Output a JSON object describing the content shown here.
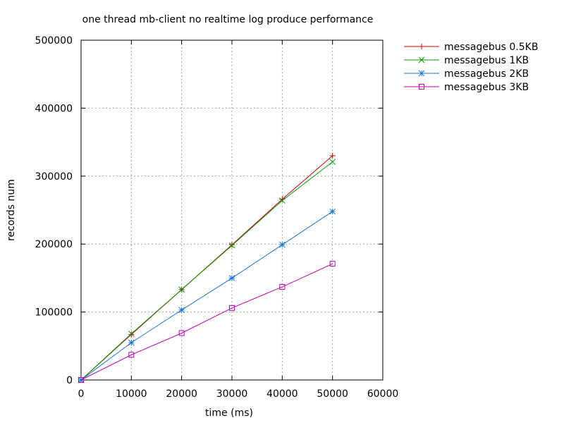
{
  "chart_data": {
    "type": "line",
    "title": "one thread mb-client no realtime log produce performance",
    "xlabel": "time (ms)",
    "ylabel": "records num",
    "xlim": [
      0,
      60000
    ],
    "ylim": [
      0,
      500000
    ],
    "xticks": [
      0,
      10000,
      20000,
      30000,
      40000,
      50000,
      60000
    ],
    "xtick_labels": [
      "0",
      "10000",
      "20000",
      "30000",
      "40000",
      "50000",
      "60000"
    ],
    "yticks": [
      0,
      100000,
      200000,
      300000,
      400000,
      500000
    ],
    "ytick_labels": [
      "0",
      "100000",
      "200000",
      "300000",
      "400000",
      "500000"
    ],
    "grid": true,
    "legend_position": "outside-right",
    "x": [
      0,
      10000,
      20000,
      30000,
      40000,
      50000
    ],
    "series": [
      {
        "name": "messagebus 0.5KB",
        "color": "#cc0000",
        "marker": "plus",
        "values": [
          0,
          67000,
          133000,
          199000,
          266000,
          330000
        ]
      },
      {
        "name": "messagebus 1KB",
        "color": "#009900",
        "marker": "cross",
        "values": [
          0,
          68000,
          133000,
          198000,
          264000,
          321000
        ]
      },
      {
        "name": "messagebus 2KB",
        "color": "#1a75d2",
        "marker": "star",
        "values": [
          0,
          55000,
          103000,
          150000,
          199000,
          248000
        ]
      },
      {
        "name": "messagebus 3KB",
        "color": "#bb00bb",
        "marker": "square",
        "values": [
          0,
          37000,
          69000,
          106000,
          137000,
          171000
        ]
      }
    ]
  }
}
